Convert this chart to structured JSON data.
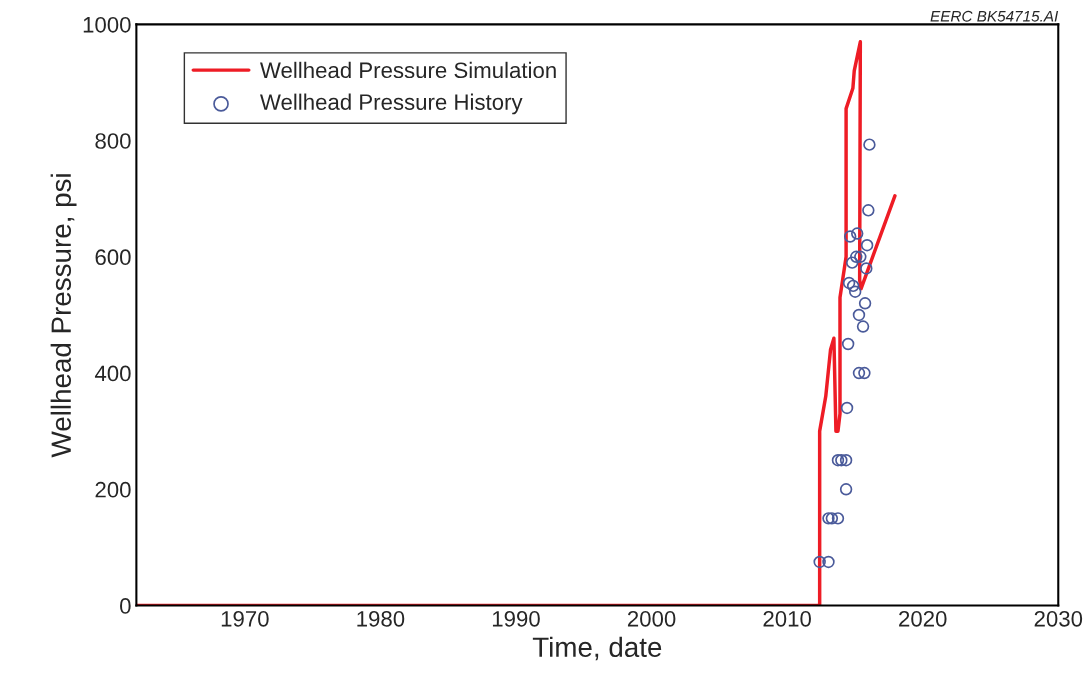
{
  "chart_data": {
    "type": "line",
    "xlabel": "Time, date",
    "ylabel": "Wellhead Pressure, psi",
    "annotations": [
      "EERC BK54715.AI"
    ],
    "xlim": [
      1962,
      2030
    ],
    "xticks": [
      1970,
      1980,
      1990,
      2000,
      2010,
      2020,
      2030
    ],
    "ylim": [
      0,
      1000
    ],
    "yticks": [
      0,
      200,
      400,
      600,
      800,
      1000
    ],
    "grid": false,
    "legend": "top left",
    "series": [
      {
        "name": "Wellhead Pressure Simulation",
        "color": "#ee1c25",
        "marker": "none",
        "line_style": "solid",
        "x": [
          1962,
          2012.4,
          2012.4,
          2012.85,
          2013.2,
          2013.45,
          2013.6,
          2013.75,
          2013.9,
          2013.9,
          2014.35,
          2014.35,
          2014.85,
          2014.95,
          2015.4,
          2015.35,
          2015.45,
          2017.95
        ],
        "values": [
          0,
          0,
          300,
          360,
          440,
          460,
          300,
          300,
          330,
          530,
          600,
          855,
          890,
          920,
          970,
          560,
          545,
          705
        ]
      },
      {
        "name": "Wellhead Pressure History",
        "type": "scatter",
        "color": "#4a5a9a",
        "marker": "circle",
        "x": [
          2012.4,
          2013.05,
          2013.05,
          2013.3,
          2013.75,
          2014.35,
          2013.75,
          2014.0,
          2014.35,
          2014.42,
          2015.3,
          2015.7,
          2014.5,
          2015.6,
          2015.3,
          2015.75,
          2015.02,
          2014.87,
          2014.57,
          2015.84,
          2014.8,
          2015.1,
          2015.4,
          2015.9,
          2014.65,
          2015.17,
          2015.99,
          2016.07
        ],
        "values": [
          75,
          75,
          150,
          150,
          150,
          200,
          250,
          250,
          250,
          340,
          400,
          400,
          450,
          480,
          500,
          520,
          540,
          550,
          555,
          580,
          590,
          600,
          600,
          620,
          635,
          640,
          680,
          793
        ]
      }
    ]
  }
}
